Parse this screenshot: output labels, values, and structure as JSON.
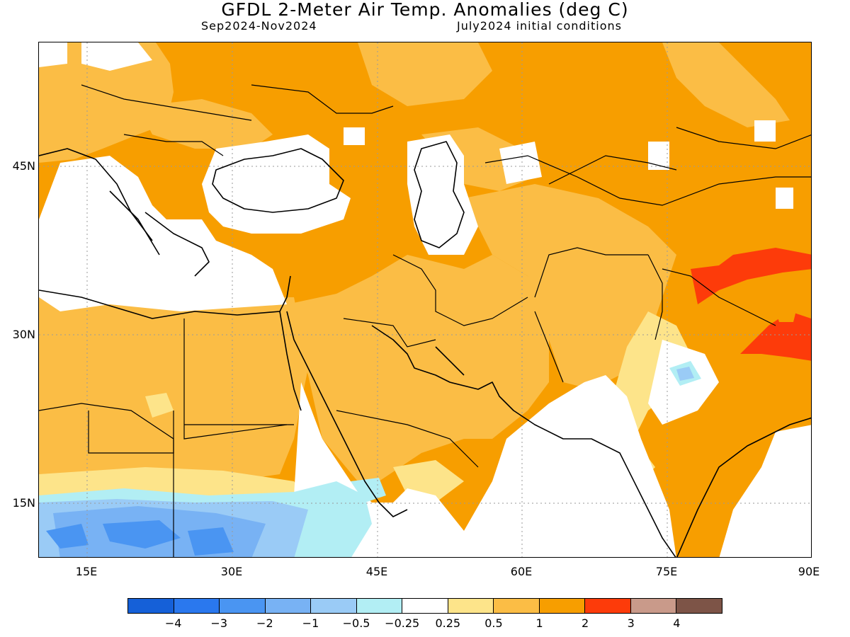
{
  "header": {
    "title": "GFDL 2-Meter Air Temp. Anomalies (deg C)",
    "period": "Sep2024-Nov2024",
    "init": "July2024 initial conditions"
  },
  "axes": {
    "lon_labels": [
      "15E",
      "30E",
      "45E",
      "60E",
      "75E",
      "90E"
    ],
    "lat_labels": [
      "45N",
      "30N",
      "15N"
    ],
    "lon_range": [
      10,
      90
    ],
    "lat_range": [
      10,
      55
    ]
  },
  "legend": {
    "colors": [
      "#1560d8",
      "#2a78ee",
      "#4a95f2",
      "#78b2f4",
      "#9acbf6",
      "#b2eef4",
      "#ffffff",
      "#fde48a",
      "#fbbd45",
      "#f79e00",
      "#fd3b0a",
      "#c99a8a",
      "#7d5447"
    ],
    "labels": [
      "−4",
      "−3",
      "−2",
      "−1",
      "−0.5",
      "−0.25",
      "0.25",
      "0.5",
      "1",
      "2",
      "3",
      "4"
    ]
  }
}
